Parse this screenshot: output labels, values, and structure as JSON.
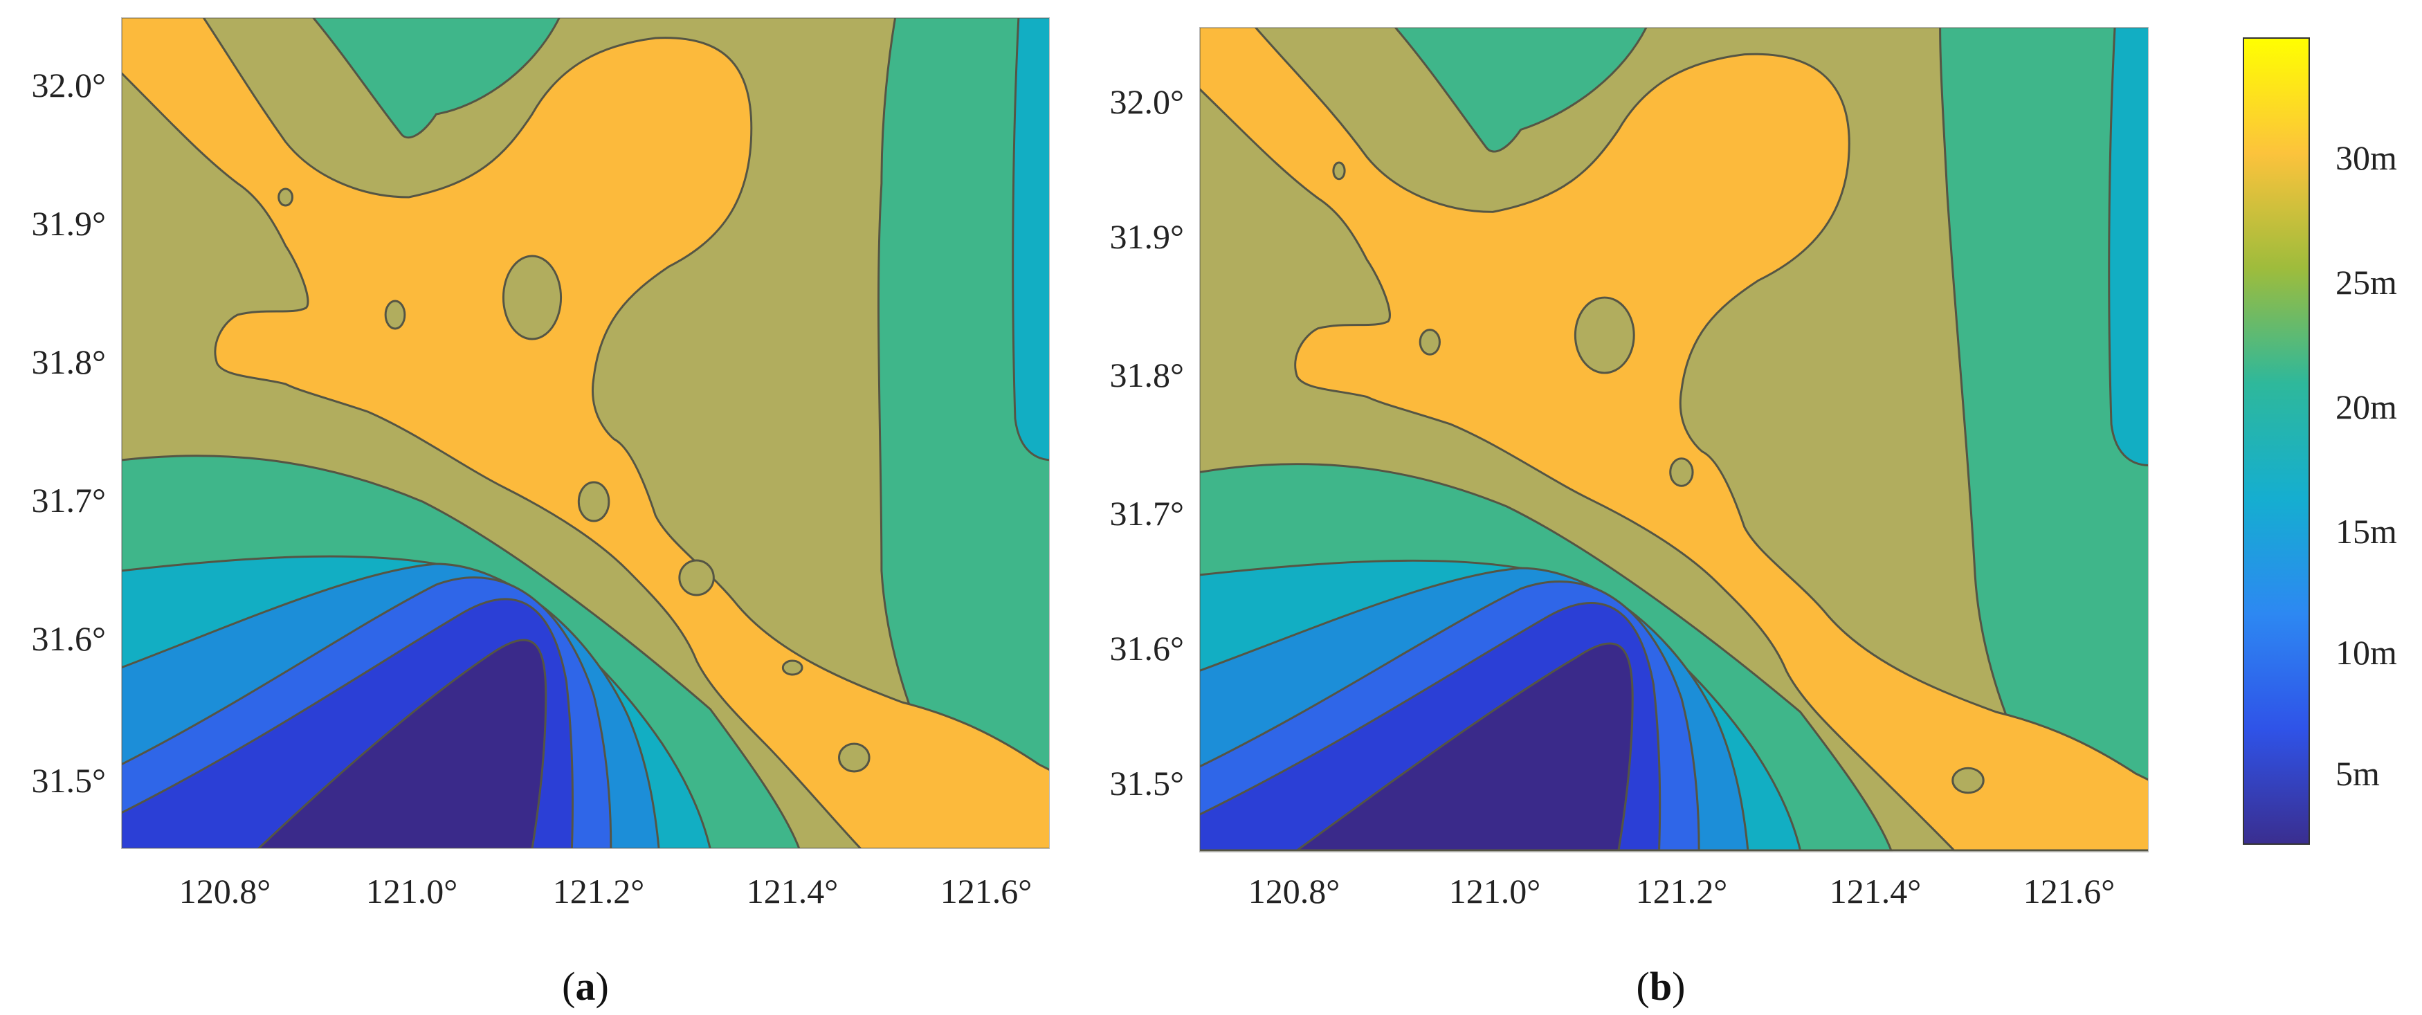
{
  "palette": {
    "band_0_5": "#3a2a8a",
    "band_5_10": "#2b3fd6",
    "band_10_12": "#2f66e8",
    "band_12_15": "#1c8ed8",
    "band_15_18": "#12aec3",
    "band_18_22": "#2fb59d",
    "band_22_25": "#3fb68a",
    "band_25_28": "#b1ad5e",
    "band_28_32": "#fcba3c",
    "contour_line": "#555544"
  },
  "panels": [
    {
      "id": "a",
      "caption": {
        "open": "(",
        "letter": "a",
        "close": ")"
      },
      "x_ticks": [
        "120.8°",
        "121.0°",
        "121.2°",
        "121.4°",
        "121.6°"
      ],
      "y_ticks": [
        "32.0°",
        "31.9°",
        "31.8°",
        "31.7°",
        "31.6°",
        "31.5°"
      ]
    },
    {
      "id": "b",
      "caption": {
        "open": "(",
        "letter": "b",
        "close": ")"
      },
      "x_ticks": [
        "120.8°",
        "121.0°",
        "121.2°",
        "121.4°",
        "121.6°"
      ],
      "y_ticks": [
        "32.0°",
        "31.9°",
        "31.8°",
        "31.7°",
        "31.6°",
        "31.5°"
      ]
    }
  ],
  "colorbar": {
    "labels": [
      "30m",
      "25m",
      "20m",
      "15m",
      "10m",
      "5m"
    ],
    "gradient": [
      "#ffff00",
      "#fcc33c",
      "#9ebc3c",
      "#2eb89b",
      "#15aed0",
      "#2d88f2",
      "#2f53e8",
      "#3a2e8f"
    ]
  }
}
